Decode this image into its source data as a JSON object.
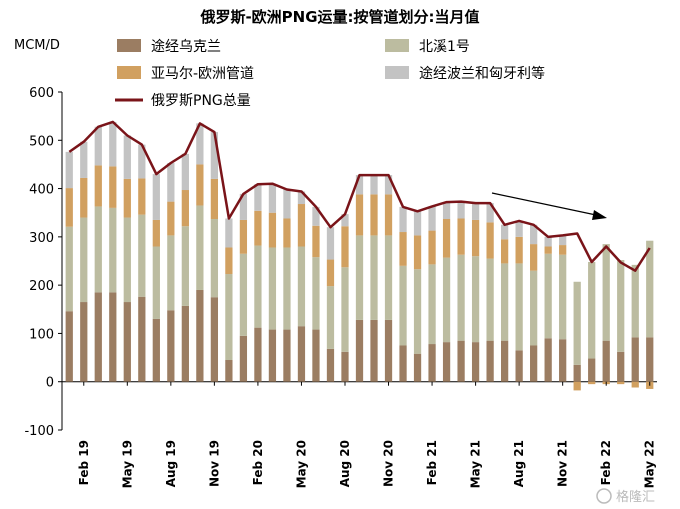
{
  "chart_data": {
    "type": "bar",
    "title": "俄罗斯-欧洲PNG运量:按管道划分:当月值",
    "ylabel": "MCM/D",
    "ylim": [
      -100,
      600
    ],
    "yticks": [
      "600",
      "500",
      "400",
      "300",
      "200",
      "100",
      "0",
      "-100"
    ],
    "x_tick_labels": [
      "Feb 19",
      "May 19",
      "Aug 19",
      "Nov 19",
      "Feb 20",
      "May 20",
      "Aug 20",
      "Nov 20",
      "Feb 21",
      "May 21",
      "Aug 21",
      "Nov 21",
      "Feb 22",
      "May 22"
    ],
    "x_tick_months": [
      1,
      4,
      7,
      10,
      13,
      16,
      19,
      22,
      25,
      28,
      31,
      34,
      37,
      40
    ],
    "months": [
      "2019-01",
      "2019-02",
      "2019-03",
      "2019-04",
      "2019-05",
      "2019-06",
      "2019-07",
      "2019-08",
      "2019-09",
      "2019-10",
      "2019-11",
      "2019-12",
      "2020-01",
      "2020-02",
      "2020-03",
      "2020-04",
      "2020-05",
      "2020-06",
      "2020-07",
      "2020-08",
      "2020-09",
      "2020-10",
      "2020-11",
      "2020-12",
      "2021-01",
      "2021-02",
      "2021-03",
      "2021-04",
      "2021-05",
      "2021-06",
      "2021-07",
      "2021-08",
      "2021-09",
      "2021-10",
      "2021-11",
      "2021-12",
      "2022-01",
      "2022-02",
      "2022-03",
      "2022-04",
      "2022-05"
    ],
    "series": [
      {
        "name": "途经乌克兰",
        "color": "#9b7d62",
        "values": [
          146,
          165,
          185,
          185,
          165,
          176,
          130,
          148,
          157,
          190,
          175,
          45,
          95,
          112,
          108,
          108,
          115,
          108,
          68,
          62,
          128,
          128,
          128,
          75,
          58,
          78,
          82,
          85,
          82,
          85,
          85,
          65,
          75,
          90,
          88,
          35,
          48,
          85,
          62,
          92,
          92
        ]
      },
      {
        "name": "北溪1号",
        "color": "#bcbca0",
        "values": [
          175,
          175,
          178,
          175,
          175,
          170,
          150,
          155,
          165,
          175,
          162,
          178,
          170,
          170,
          170,
          170,
          165,
          150,
          130,
          175,
          175,
          175,
          175,
          165,
          175,
          165,
          175,
          178,
          178,
          170,
          160,
          180,
          155,
          175,
          175,
          172,
          200,
          200,
          190,
          150,
          200
        ]
      },
      {
        "name": "亚马尔-欧洲管道",
        "color": "#d1a060",
        "values": [
          80,
          82,
          85,
          86,
          80,
          75,
          55,
          70,
          75,
          85,
          83,
          55,
          70,
          72,
          72,
          60,
          88,
          65,
          55,
          85,
          85,
          85,
          85,
          70,
          70,
          70,
          80,
          75,
          75,
          75,
          50,
          55,
          55,
          15,
          20,
          -18,
          -5,
          -5,
          -5,
          -12,
          -15
        ]
      },
      {
        "name": "途经波兰和匈牙利等",
        "color": "#c3c3c3",
        "values": [
          75,
          75,
          80,
          92,
          90,
          70,
          95,
          80,
          75,
          85,
          97,
          60,
          54,
          55,
          60,
          60,
          26,
          39,
          67,
          25,
          40,
          40,
          40,
          52,
          50,
          50,
          35,
          35,
          35,
          40,
          30,
          33,
          40,
          20,
          20,
          0,
          0,
          0,
          0,
          0,
          0
        ]
      },
      {
        "name": "俄罗斯PNG总量",
        "color": "#7a1419",
        "kind": "line",
        "values": [
          476,
          497,
          528,
          538,
          510,
          491,
          430,
          453,
          472,
          535,
          517,
          338,
          389,
          409,
          410,
          398,
          394,
          362,
          320,
          347,
          428,
          428,
          428,
          362,
          353,
          363,
          372,
          373,
          370,
          370,
          325,
          333,
          325,
          300,
          303,
          307,
          248,
          280,
          247,
          230,
          277
        ]
      }
    ],
    "legend": [
      {
        "label": "途经乌克兰",
        "color": "#9b7d62",
        "kind": "square"
      },
      {
        "label": "北溪1号",
        "color": "#bcbca0",
        "kind": "square"
      },
      {
        "label": "亚马尔-欧洲管道",
        "color": "#d1a060",
        "kind": "square"
      },
      {
        "label": "途经波兰和匈牙利等",
        "color": "#c3c3c3",
        "kind": "square"
      },
      {
        "label": "俄罗斯PNG总量",
        "color": "#7a1419",
        "kind": "line"
      }
    ]
  },
  "watermark": "格隆汇"
}
